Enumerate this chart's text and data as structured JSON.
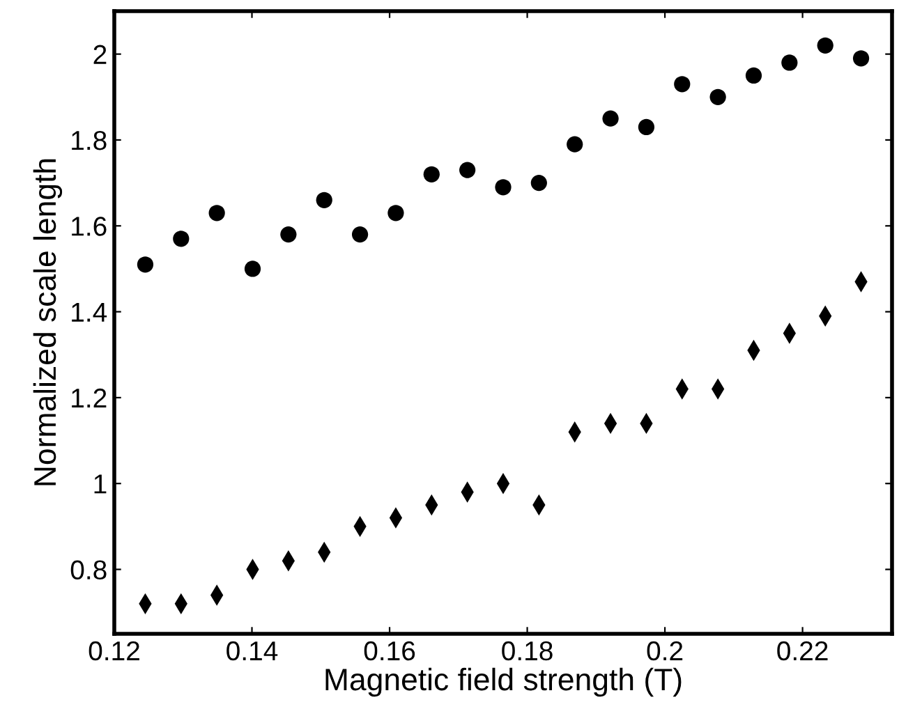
{
  "chart_data": {
    "type": "scatter",
    "xlabel": "Magnetic field strength (T)",
    "ylabel": "Normalized scale length",
    "x": [
      0.1245,
      0.1297,
      0.1349,
      0.1401,
      0.1453,
      0.1505,
      0.1557,
      0.1609,
      0.1661,
      0.1713,
      0.1765,
      0.1817,
      0.1869,
      0.1921,
      0.1973,
      0.2025,
      0.2077,
      0.2129,
      0.2181,
      0.2233,
      0.2285
    ],
    "series": [
      {
        "color": "#000000",
        "marker": "circle",
        "values": [
          1.51,
          1.57,
          1.63,
          1.5,
          1.58,
          1.66,
          1.58,
          1.63,
          1.72,
          1.73,
          1.69,
          1.7,
          1.79,
          1.85,
          1.83,
          1.93,
          1.9,
          1.95,
          1.98,
          2.02,
          1.99
        ]
      },
      {
        "color": "#000000",
        "marker": "diamond",
        "values": [
          0.72,
          0.72,
          0.74,
          0.8,
          0.82,
          0.84,
          0.9,
          0.92,
          0.95,
          0.98,
          1.0,
          0.95,
          1.12,
          1.14,
          1.14,
          1.22,
          1.22,
          1.31,
          1.35,
          1.39,
          1.47
        ]
      }
    ],
    "xlim": [
      0.12,
      0.233
    ],
    "ylim": [
      0.65,
      2.1
    ],
    "xticks": [
      0.12,
      0.14,
      0.16,
      0.18,
      0.2,
      0.22
    ],
    "yticks": [
      0.8,
      1,
      1.2,
      1.4,
      1.6,
      1.8,
      2
    ],
    "grid": false,
    "legend": false
  }
}
